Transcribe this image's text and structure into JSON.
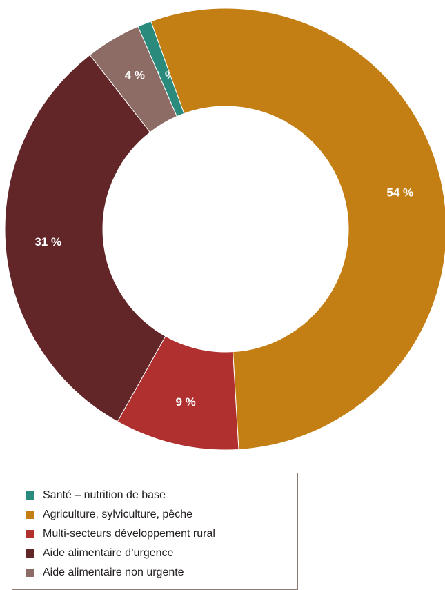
{
  "chart_data": {
    "type": "pie",
    "variant": "donut",
    "categories": [
      "Santé – nutrition de base",
      "Agriculture, sylviculture, pêche",
      "Multi-secteurs développement rural",
      "Aide alimentaire d’urgence",
      "Aide alimentaire non urgente"
    ],
    "values": [
      1,
      54,
      9,
      31,
      4
    ],
    "labels": [
      "1 %",
      "54 %",
      "9 %",
      "31 %",
      "4 %"
    ],
    "colors": [
      "#2a8b7c",
      "#c47f14",
      "#b02f2f",
      "#622528",
      "#8e6c66"
    ],
    "legend_position": "bottom-left",
    "start": "top",
    "direction": "clockwise"
  }
}
